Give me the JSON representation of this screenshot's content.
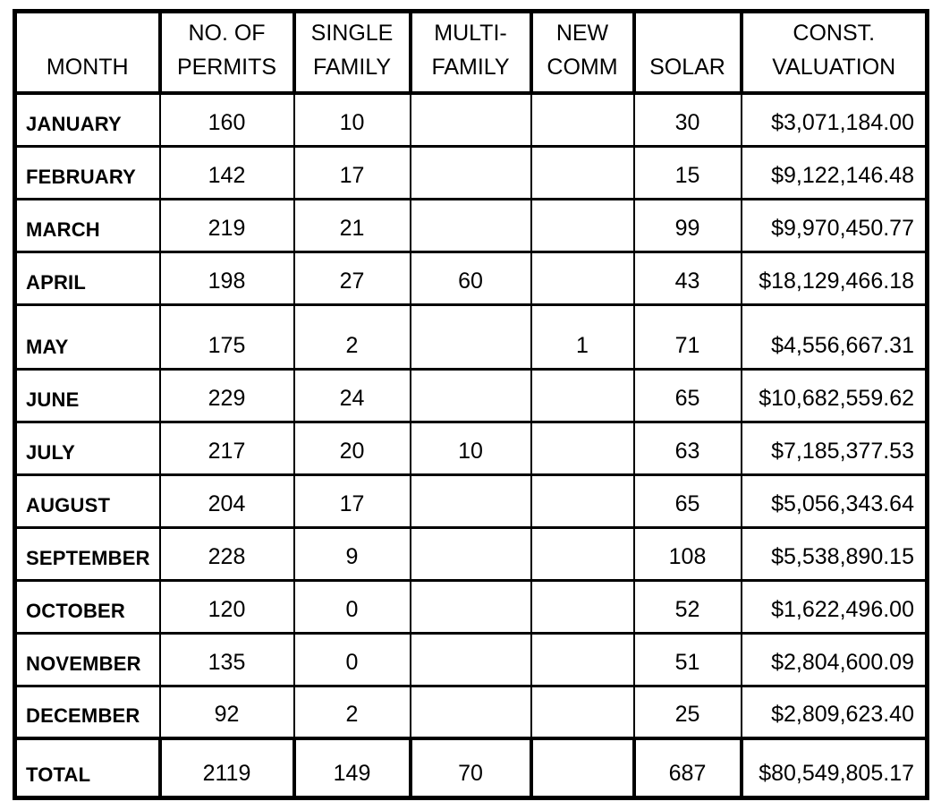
{
  "table": {
    "title": "monthly-building-permit-summary",
    "columns": [
      {
        "key": "month",
        "label": "MONTH"
      },
      {
        "key": "permits",
        "label": "NO. OF\nPERMITS"
      },
      {
        "key": "single",
        "label": "SINGLE\nFAMILY"
      },
      {
        "key": "multi",
        "label": "MULTI-\nFAMILY"
      },
      {
        "key": "newcomm",
        "label": "NEW\nCOMM"
      },
      {
        "key": "solar",
        "label": "SOLAR"
      },
      {
        "key": "valuation",
        "label": "CONST.\nVALUATION"
      }
    ],
    "rows": [
      {
        "month": "JANUARY",
        "permits": "160",
        "single": "10",
        "multi": "",
        "newcomm": "",
        "solar": "30",
        "valuation": "$3,071,184.00"
      },
      {
        "month": "FEBRUARY",
        "permits": "142",
        "single": "17",
        "multi": "",
        "newcomm": "",
        "solar": "15",
        "valuation": "$9,122,146.48"
      },
      {
        "month": "MARCH",
        "permits": "219",
        "single": "21",
        "multi": "",
        "newcomm": "",
        "solar": "99",
        "valuation": "$9,970,450.77"
      },
      {
        "month": "APRIL",
        "permits": "198",
        "single": "27",
        "multi": "60",
        "newcomm": "",
        "solar": "43",
        "valuation": "$18,129,466.18"
      },
      {
        "month": "MAY",
        "permits": "175",
        "single": "2",
        "multi": "",
        "newcomm": "1",
        "solar": "71",
        "valuation": "$4,556,667.31"
      },
      {
        "month": "JUNE",
        "permits": "229",
        "single": "24",
        "multi": "",
        "newcomm": "",
        "solar": "65",
        "valuation": "$10,682,559.62"
      },
      {
        "month": "JULY",
        "permits": "217",
        "single": "20",
        "multi": "10",
        "newcomm": "",
        "solar": "63",
        "valuation": "$7,185,377.53"
      },
      {
        "month": "AUGUST",
        "permits": "204",
        "single": "17",
        "multi": "",
        "newcomm": "",
        "solar": "65",
        "valuation": "$5,056,343.64"
      },
      {
        "month": "SEPTEMBER",
        "permits": "228",
        "single": "9",
        "multi": "",
        "newcomm": "",
        "solar": "108",
        "valuation": "$5,538,890.15"
      },
      {
        "month": "OCTOBER",
        "permits": "120",
        "single": "0",
        "multi": "",
        "newcomm": "",
        "solar": "52",
        "valuation": "$1,622,496.00"
      },
      {
        "month": "NOVEMBER",
        "permits": "135",
        "single": "0",
        "multi": "",
        "newcomm": "",
        "solar": "51",
        "valuation": "$2,804,600.09"
      },
      {
        "month": "DECEMBER",
        "permits": "92",
        "single": "2",
        "multi": "",
        "newcomm": "",
        "solar": "25",
        "valuation": "$2,809,623.40"
      }
    ],
    "total_row": {
      "month": "TOTAL",
      "permits": "2119",
      "single": "149",
      "multi": "70",
      "newcomm": "",
      "solar": "687",
      "valuation": "$80,549,805.17"
    }
  }
}
